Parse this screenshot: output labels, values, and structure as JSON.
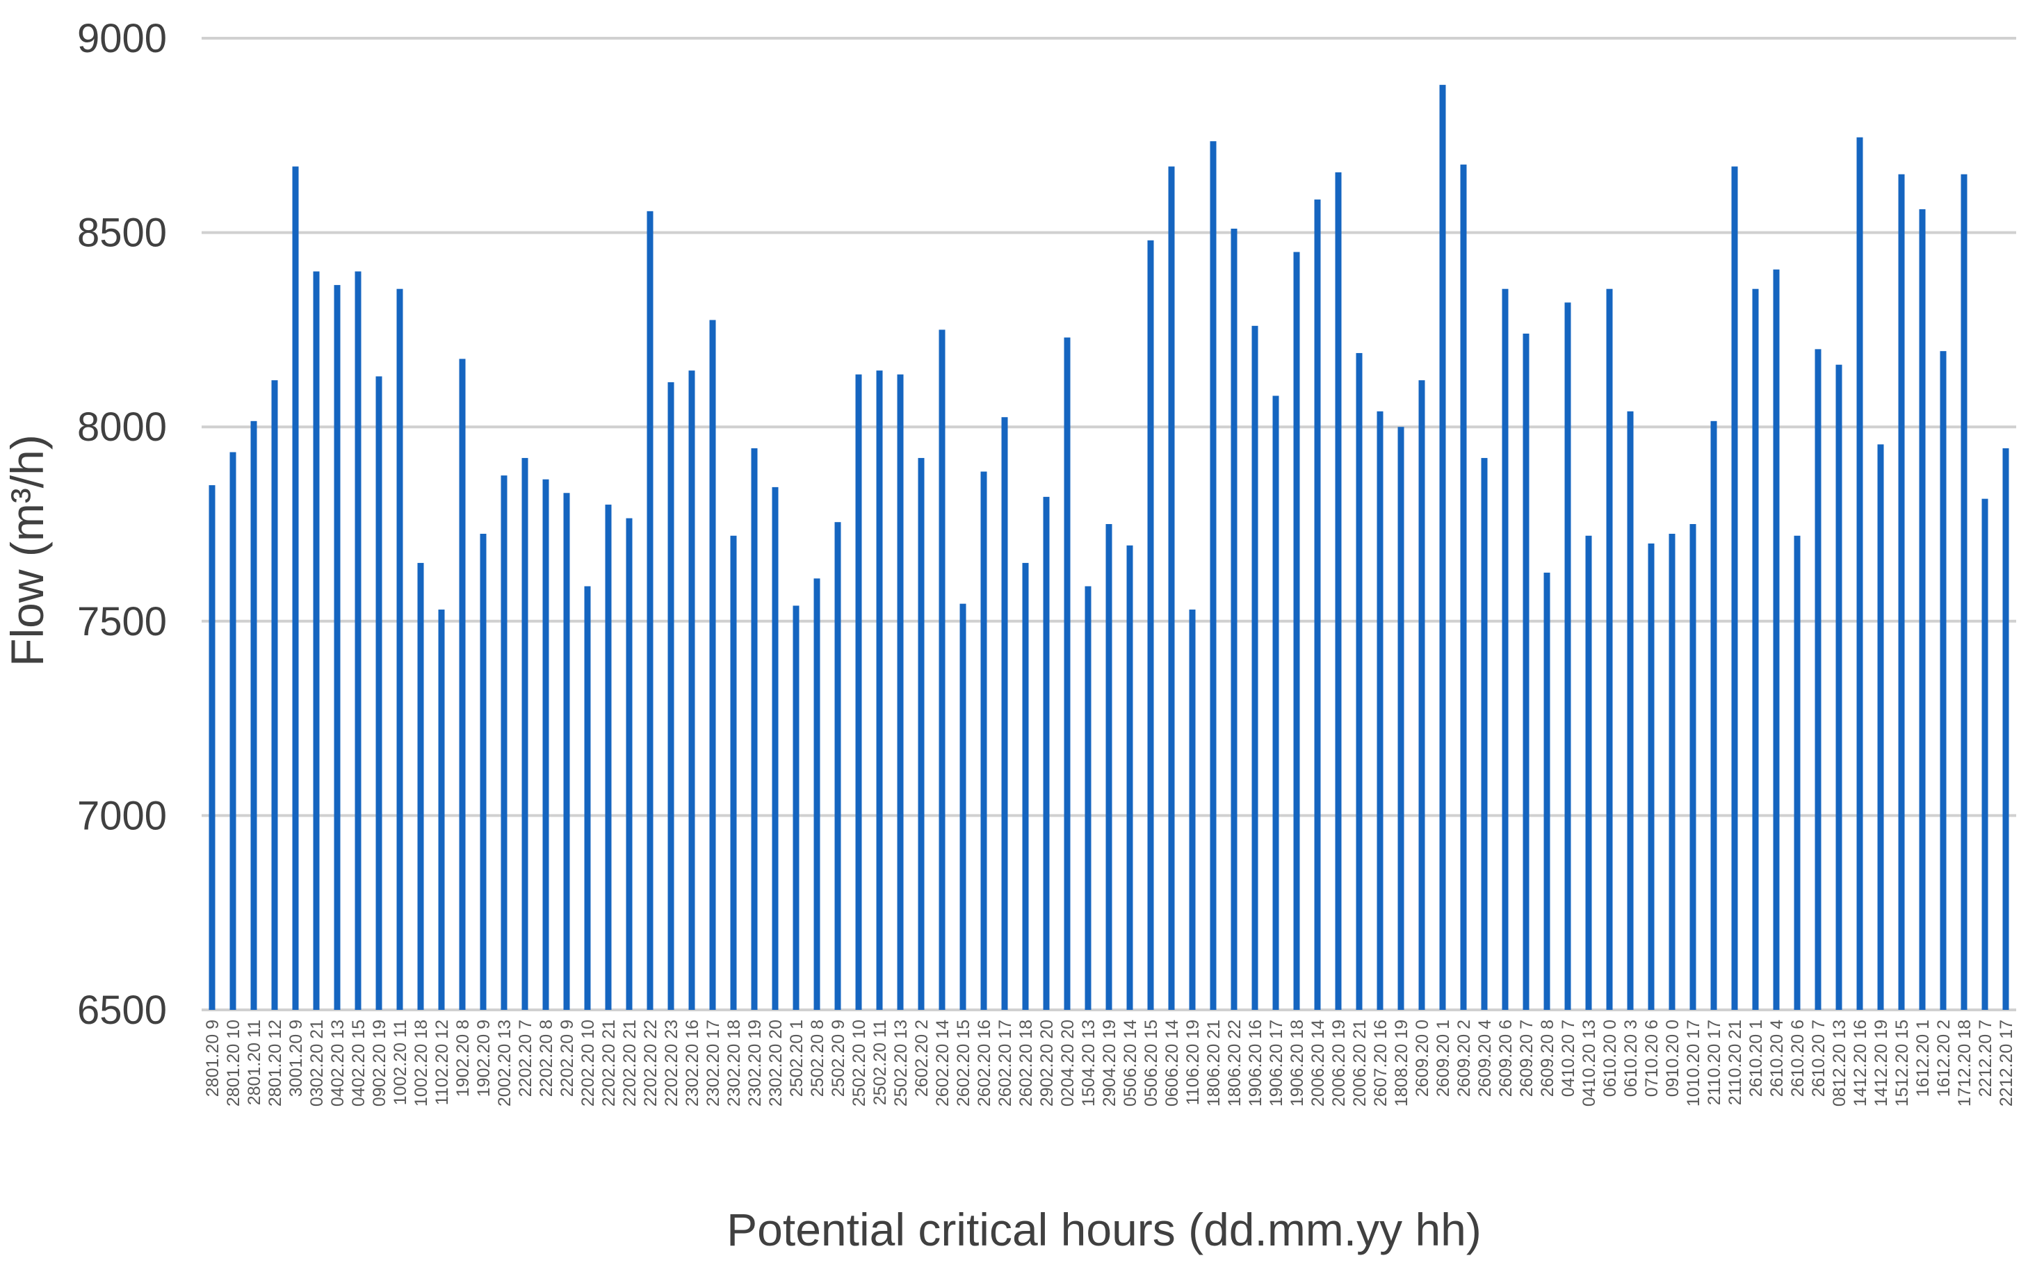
{
  "chart_data": {
    "type": "bar",
    "xlabel": "Potential critical hours (dd.mm.yy hh)",
    "ylabel": "Flow (m³/h)",
    "ylim": [
      6500,
      9000
    ],
    "yticks": [
      "6500",
      "7000",
      "7500",
      "8000",
      "8500",
      "9000"
    ],
    "grid": true,
    "bar_color": "#1565c0",
    "categories": [
      "2801.20 9",
      "2801.20 10",
      "2801.20 11",
      "2801.20 12",
      "3001.20 9",
      "0302.20 21",
      "0402.20 13",
      "0402.20 15",
      "0902.20 19",
      "1002.20 11",
      "1002.20 18",
      "1102.20 12",
      "1902.20 8",
      "1902.20 9",
      "2002.20 13",
      "2202.20 7",
      "2202.20 8",
      "2202.20 9",
      "2202.20 10",
      "2202.20 21",
      "2202.20 21",
      "2202.20 22",
      "2202.20 23",
      "2302.20 16",
      "2302.20 17",
      "2302.20 18",
      "2302.20 19",
      "2302.20 20",
      "2502.20 1",
      "2502.20 8",
      "2502.20 9",
      "2502.20 10",
      "2502.20 11",
      "2502.20 13",
      "2602.20 2",
      "2602.20 14",
      "2602.20 15",
      "2602.20 16",
      "2602.20 17",
      "2602.20 18",
      "2902.20 20",
      "0204.20 20",
      "1504.20 13",
      "2904.20 19",
      "0506.20 14",
      "0506.20 15",
      "0606.20 14",
      "1106.20 19",
      "1806.20 21",
      "1806.20 22",
      "1906.20 16",
      "1906.20 17",
      "1906.20 18",
      "2006.20 14",
      "2006.20 19",
      "2006.20 21",
      "2607.20 16",
      "1808.20 19",
      "2609.20 0",
      "2609.20 1",
      "2609.20 2",
      "2609.20 4",
      "2609.20 6",
      "2609.20 7",
      "2609.20 8",
      "0410.20 7",
      "0410.20 13",
      "0610.20 0",
      "0610.20 3",
      "0710.20 6",
      "0910.20 0",
      "1010.20 17",
      "2110.20 17",
      "2110.20 21",
      "2610.20 1",
      "2610.20 4",
      "2610.20 6",
      "2610.20 7",
      "0812.20 13",
      "1412.20 16",
      "1412.20 19",
      "1512.20 15",
      "1612.20 1",
      "1612.20 2",
      "1712.20 18",
      "2212.20 7",
      "2212.20 17"
    ],
    "values": [
      7850,
      7935,
      8015,
      8120,
      8670,
      8400,
      8365,
      8400,
      8130,
      8355,
      7650,
      7530,
      8175,
      7725,
      7875,
      7920,
      7865,
      7830,
      7590,
      7800,
      7765,
      8555,
      8115,
      8145,
      8275,
      7720,
      7945,
      7845,
      7540,
      7610,
      7755,
      8135,
      8145,
      8135,
      7920,
      8250,
      7545,
      7885,
      8025,
      7650,
      7820,
      8230,
      7590,
      7750,
      7695,
      8480,
      8670,
      7530,
      8735,
      8510,
      8260,
      8080,
      8450,
      8585,
      8655,
      8190,
      8040,
      8000,
      8120,
      8880,
      8675,
      7920,
      8355,
      8240,
      7625,
      8320,
      7720,
      8355,
      8040,
      7700,
      7725,
      7750,
      8015,
      8670,
      8355,
      8405,
      7720,
      8200,
      8160,
      8745,
      7955,
      8650,
      8560,
      8195,
      8650,
      7815,
      7945
    ]
  }
}
